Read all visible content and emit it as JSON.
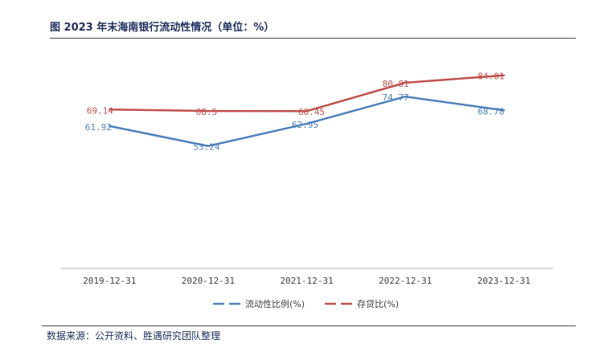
{
  "title": "图   2023 年末海南银行流动性情况（单位：%）",
  "source": "数据来源：公开资料、胜遇研究团队整理",
  "colors": {
    "liquidity": "#4f81bd",
    "deposit": "#c0504d",
    "axis": "#b5b5b5",
    "text": "#404040"
  },
  "chart_data": {
    "type": "line",
    "categories": [
      "2019-12-31",
      "2020-12-31",
      "2021-12-31",
      "2022-12-31",
      "2023-12-31"
    ],
    "series": [
      {
        "name": "流动性比例(%)",
        "values": [
          61.92,
          53.24,
          62.95,
          74.77,
          68.78
        ],
        "labels": [
          "61.92",
          "53.24",
          "62.95",
          "74.77",
          "68.78"
        ],
        "color": "#4f81bd"
      },
      {
        "name": "存贷比(%)",
        "values": [
          69.14,
          68.5,
          68.45,
          80.81,
          84.01
        ],
        "labels": [
          "69.14",
          "68.5",
          "68.45",
          "80.81",
          "84.01"
        ],
        "color": "#c0504d"
      }
    ],
    "ylim": [
      0,
      100
    ],
    "grid": false,
    "legend": "bottom"
  }
}
